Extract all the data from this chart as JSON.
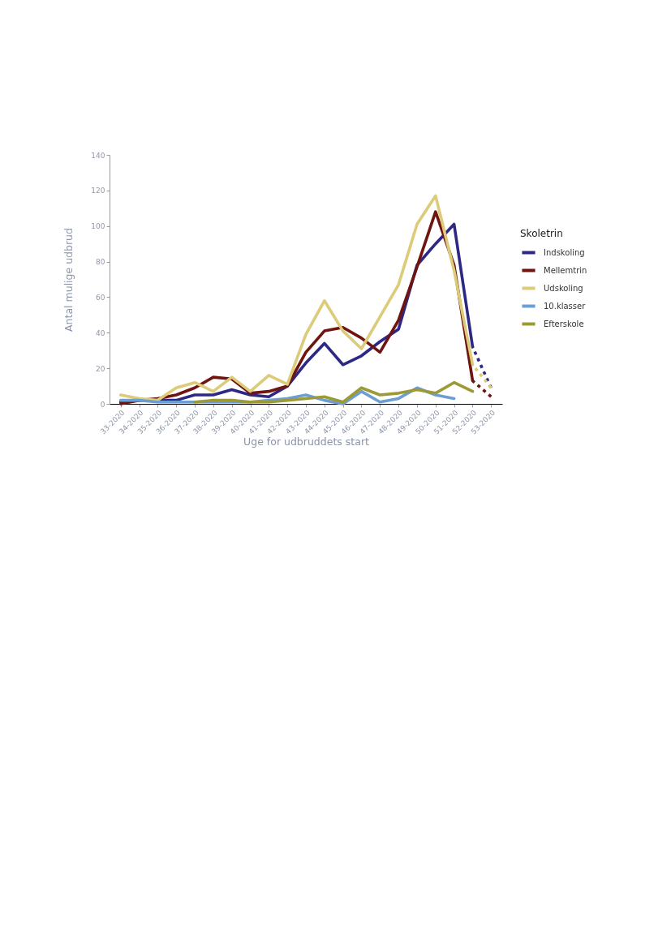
{
  "chart_data": {
    "type": "line",
    "categories": [
      "33-2020",
      "34-2020",
      "35-2020",
      "36-2020",
      "37-2020",
      "38-2020",
      "39-2020",
      "40-2020",
      "41-2020",
      "42-2020",
      "43-2020",
      "44-2020",
      "45-2020",
      "46-2020",
      "47-2020",
      "48-2020",
      "49-2020",
      "50-2020",
      "51-2020",
      "52-2020",
      "53-2020"
    ],
    "series": [
      {
        "name": "Indskoling",
        "color": "#2e2885",
        "values": [
          1,
          2,
          2,
          2,
          5,
          5,
          8,
          5,
          4,
          10,
          23,
          34,
          22,
          27,
          35,
          42,
          78,
          90,
          101,
          32,
          null
        ]
      },
      {
        "name": "Mellemtrin",
        "color": "#6e1411",
        "values": [
          0,
          2,
          3,
          5,
          9,
          15,
          14,
          6,
          7,
          10,
          29,
          41,
          43,
          37,
          29,
          47,
          77,
          108,
          78,
          13,
          null
        ]
      },
      {
        "name": "Udskoling",
        "color": "#dccb78",
        "values": [
          5,
          3,
          2,
          9,
          12,
          7,
          15,
          7,
          16,
          11,
          39,
          58,
          41,
          31,
          49,
          67,
          101,
          117,
          75,
          22,
          null
        ]
      },
      {
        "name": "10.klasser",
        "color": "#6b9ed3",
        "values": [
          2,
          2,
          1,
          1,
          1,
          1,
          1,
          1,
          2,
          3,
          5,
          2,
          0,
          7,
          1,
          3,
          9,
          5,
          3,
          null,
          null
        ]
      },
      {
        "name": "Efterskole",
        "color": "#9c9a36",
        "values": [
          null,
          null,
          null,
          null,
          1,
          2,
          2,
          1,
          1,
          2,
          3,
          4,
          1,
          9,
          5,
          6,
          8,
          6,
          12,
          7,
          null
        ]
      },
      {
        "color": "#2e2885",
        "line_style": "dotted",
        "values": [
          null,
          null,
          null,
          null,
          null,
          null,
          null,
          null,
          null,
          null,
          null,
          null,
          null,
          null,
          null,
          null,
          null,
          null,
          null,
          32,
          9
        ]
      },
      {
        "color": "#6e1411",
        "line_style": "dotted",
        "values": [
          null,
          null,
          null,
          null,
          null,
          null,
          null,
          null,
          null,
          null,
          null,
          null,
          null,
          null,
          null,
          null,
          null,
          null,
          null,
          13,
          4
        ]
      },
      {
        "color": "#dccb78",
        "line_style": "dotted",
        "values": [
          null,
          null,
          null,
          null,
          null,
          null,
          null,
          null,
          null,
          null,
          null,
          null,
          null,
          null,
          null,
          null,
          null,
          null,
          null,
          22,
          9
        ]
      }
    ],
    "xlabel": "Uge for udbruddets start",
    "ylabel": "Antal mulige udbrud",
    "legend_title": "Skoletrin",
    "ylim": [
      0,
      140
    ],
    "yticks": [
      0,
      20,
      40,
      60,
      80,
      100,
      120,
      140
    ],
    "legend": "right",
    "grid": false,
    "marker": "none",
    "line_style": "solid"
  }
}
